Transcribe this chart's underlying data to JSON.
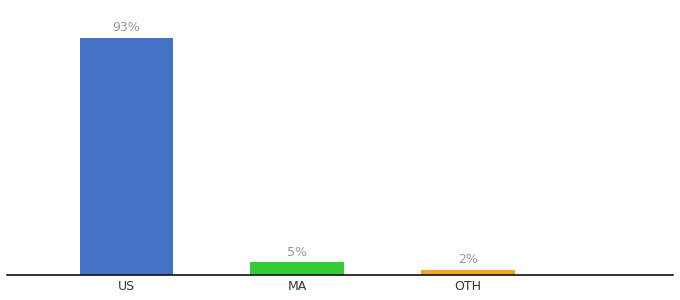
{
  "categories": [
    "US",
    "MA",
    "OTH"
  ],
  "values": [
    93,
    5,
    2
  ],
  "bar_colors": [
    "#4472c4",
    "#33cc33",
    "#f5a623"
  ],
  "label_texts": [
    "93%",
    "5%",
    "2%"
  ],
  "background_color": "#ffffff",
  "text_color": "#999999",
  "axis_line_color": "#111111",
  "label_fontsize": 9,
  "tick_fontsize": 9,
  "ylim": [
    0,
    105
  ],
  "bar_width": 0.55,
  "x_positions": [
    1,
    2,
    3
  ],
  "xlim": [
    0.3,
    4.2
  ]
}
